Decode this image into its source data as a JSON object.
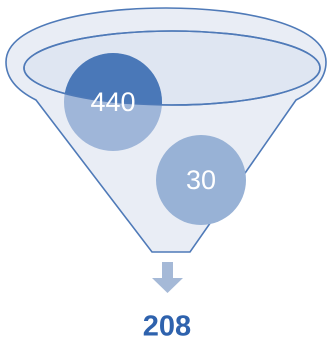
{
  "funnel": {
    "inputs": [
      {
        "label": "440",
        "color": "#4a78b8"
      },
      {
        "label": "30",
        "color": "#98b2d6"
      }
    ],
    "output": {
      "label": "208",
      "color": "#2e62ad"
    },
    "colors": {
      "funnel_fill": "#e9edf5",
      "funnel_stroke": "#4f7ab8",
      "rim_fill": "#dfe6f2",
      "overlap_color": "#9fb6d9",
      "arrow": "#a5b9d7"
    }
  }
}
